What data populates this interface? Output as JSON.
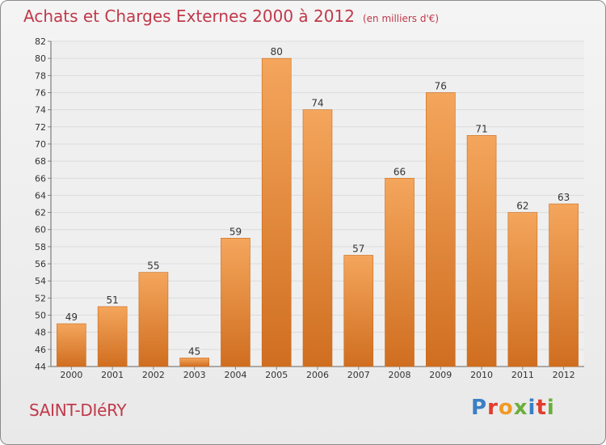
{
  "title": "Achats et Charges Externes 2000 à 2012",
  "subtitle": "(en milliers d'€)",
  "commune": "SAINT-DIéRY",
  "logo": {
    "text": "Proxiti",
    "colors": [
      "#3a7fc4",
      "#e23b2e",
      "#f09a24",
      "#6aae3b",
      "#3a7fc4",
      "#e23b2e",
      "#6aae3b"
    ]
  },
  "colors": {
    "title": "#c0394a",
    "bar_light": "#f4a65c",
    "bar_dark": "#d06e20",
    "grid": "#dcdcdc"
  },
  "chart_data": {
    "type": "bar",
    "categories": [
      "2000",
      "2001",
      "2002",
      "2003",
      "2004",
      "2005",
      "2006",
      "2007",
      "2008",
      "2009",
      "2010",
      "2011",
      "2012"
    ],
    "values": [
      49,
      51,
      55,
      45,
      59,
      80,
      74,
      57,
      66,
      76,
      71,
      62,
      63
    ],
    "ylim": [
      44,
      82
    ],
    "yticks": [
      44,
      46,
      48,
      50,
      52,
      54,
      56,
      58,
      60,
      62,
      64,
      66,
      68,
      70,
      72,
      74,
      76,
      78,
      80,
      82
    ],
    "title": "Achats et Charges Externes 2000 à 2012",
    "subtitle": "(en milliers d'€)",
    "xlabel": "",
    "ylabel": "",
    "grid": true,
    "data_labels": true
  }
}
